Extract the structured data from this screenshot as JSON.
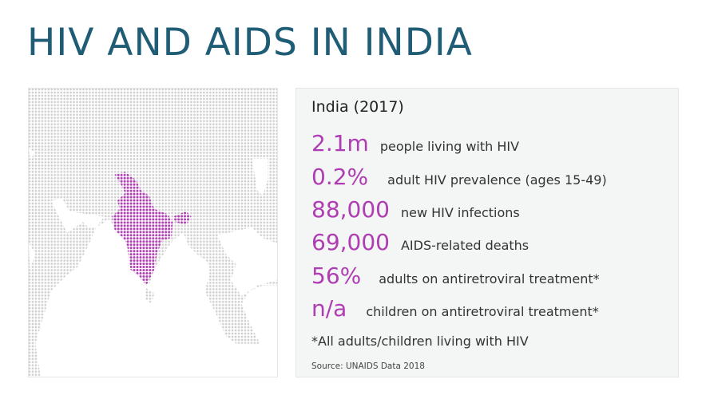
{
  "title": "HIV AND AIDS IN INDIA",
  "panel": {
    "heading": "India (2017)",
    "stats": [
      {
        "value": "2.1m",
        "label": "people living with HIV"
      },
      {
        "value": "0.2%",
        "label": "adult HIV prevalence (ages 15-49)"
      },
      {
        "value": "88,000",
        "label": "new HIV infections"
      },
      {
        "value": "69,000",
        "label": "AIDS-related deaths"
      },
      {
        "value": "56%",
        "label": "adults on antiretroviral treatment*"
      },
      {
        "value": "n/a",
        "label": "children on antiretroviral treatment*"
      }
    ],
    "footnote": "*All adults/children living with HIV",
    "source": "Source: UNAIDS Data 2018"
  },
  "colors": {
    "title": "#1f5c75",
    "accent": "#b03cb4",
    "land": "#cfcfcf"
  }
}
